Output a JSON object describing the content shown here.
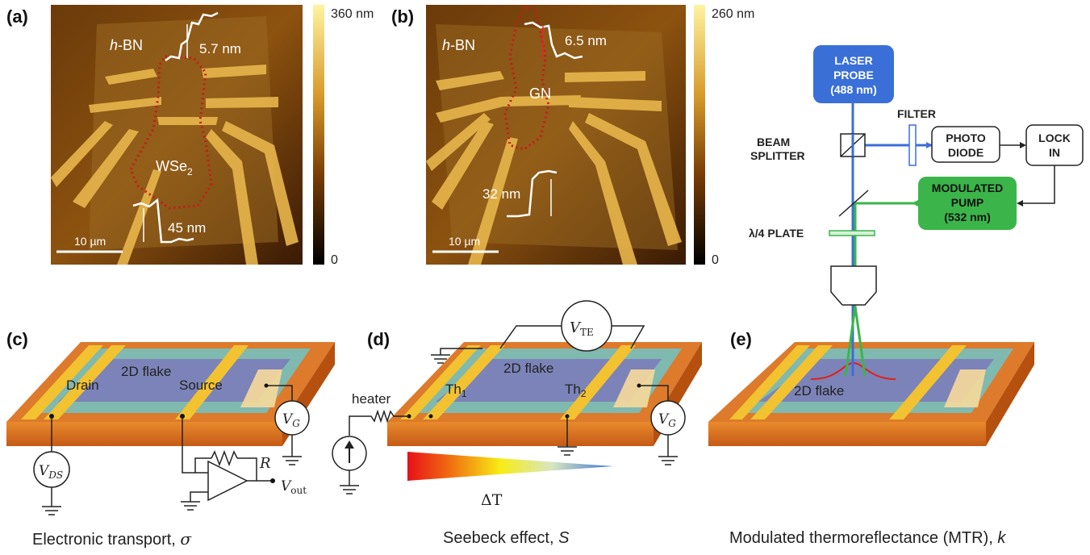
{
  "panels": {
    "a": {
      "letter": "(a)",
      "material_label": "h-BN",
      "material_prefix": "h",
      "material_suffix": "-BN",
      "flake_label_main": "WSe",
      "flake_label_sub": "2",
      "step_top": "5.7 nm",
      "step_bottom": "45 nm",
      "scale_bar": "10 µm",
      "colorbar_max": "360 nm",
      "colorbar_min": "0"
    },
    "b": {
      "letter": "(b)",
      "material_prefix": "h",
      "material_suffix": "-BN",
      "flake_label": "GN",
      "step_top": "6.5 nm",
      "step_bottom": "32 nm",
      "scale_bar": "10 µm",
      "colorbar_max": "260 nm",
      "colorbar_min": "0"
    },
    "c": {
      "letter": "(c)",
      "flake_label": "2D flake",
      "drain_label": "Drain",
      "source_label": "Source",
      "vds_main": "V",
      "vds_sub": "DS",
      "vg_main": "V",
      "vg_sub": "G",
      "r_label": "R",
      "vout_main": "V",
      "vout_sub": "out",
      "caption_text": "Electronic transport, ",
      "caption_symbol": "σ"
    },
    "d": {
      "letter": "(d)",
      "flake_label": "2D flake",
      "th1_main": "Th",
      "th1_sub": "1",
      "th2_main": "Th",
      "th2_sub": "2",
      "heater_label": "heater",
      "vte_main": "V",
      "vte_sub": "TE",
      "vg_main": "V",
      "vg_sub": "G",
      "delta_t": "ΔT",
      "caption_text": "Seebeck effect, ",
      "caption_symbol": "S"
    },
    "e": {
      "letter": "(e)",
      "flake_label": "2D flake",
      "laser_probe_line1": "LASER",
      "laser_probe_line2": "PROBE",
      "laser_probe_line3": "(488 nm)",
      "filter_label": "FILTER",
      "beam_splitter_line1": "BEAM",
      "beam_splitter_line2": "SPLITTER",
      "photo_diode_line1": "PHOTO",
      "photo_diode_line2": "DIODE",
      "lock_in_line1": "LOCK",
      "lock_in_line2": "IN",
      "pump_line1": "MODULATED",
      "pump_line2": "PUMP",
      "pump_line3": "(532 nm)",
      "plate_label": "λ/4 PLATE",
      "caption_text": "Modulated thermoreflectance (MTR), ",
      "caption_symbol": "k"
    }
  },
  "colors": {
    "probe_blue": "#3a6fd8",
    "pump_green": "#3bb54a",
    "electrode_gold": "#f2c230",
    "substrate_orange": "#d9742a",
    "flake_blue": "#7c83b8",
    "hbn_teal": "#7fb9b0"
  }
}
